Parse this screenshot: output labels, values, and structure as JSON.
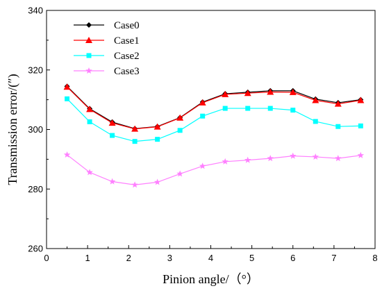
{
  "chart_data": {
    "type": "line",
    "xlabel": "Pinion angle/（°）",
    "ylabel": "Transmission error/(″)",
    "xlim": [
      0,
      8
    ],
    "ylim": [
      260,
      340
    ],
    "xticks": [
      0,
      1,
      2,
      3,
      4,
      5,
      6,
      7,
      8
    ],
    "yticks": [
      260,
      280,
      300,
      320,
      340
    ],
    "grid": false,
    "legend_position": "top-left",
    "x": [
      0.5,
      1.05,
      1.6,
      2.15,
      2.7,
      3.25,
      3.8,
      4.35,
      4.9,
      5.45,
      6.0,
      6.55,
      7.1,
      7.65
    ],
    "series": [
      {
        "name": "Case0",
        "color": "#000000",
        "marker": "diamond",
        "values": [
          314.5,
          307.0,
          302.5,
          300.3,
          301.0,
          304.0,
          309.2,
          312.0,
          312.5,
          313.0,
          313.0,
          310.2,
          309.0,
          310.0
        ]
      },
      {
        "name": "Case1",
        "color": "#ff0000",
        "marker": "triangle",
        "values": [
          314.3,
          306.8,
          302.2,
          300.2,
          300.9,
          303.9,
          309.0,
          311.8,
          312.2,
          312.6,
          312.5,
          309.8,
          308.6,
          309.8
        ]
      },
      {
        "name": "Case2",
        "color": "#00ffff",
        "marker": "square",
        "values": [
          310.3,
          302.6,
          298.0,
          296.0,
          296.7,
          299.7,
          304.5,
          307.1,
          307.1,
          307.1,
          306.5,
          302.7,
          301.0,
          301.2
        ]
      },
      {
        "name": "Case3",
        "color": "#ff80ff",
        "marker": "star",
        "values": [
          291.5,
          285.6,
          282.5,
          281.4,
          282.3,
          285.1,
          287.7,
          289.2,
          289.7,
          290.3,
          291.1,
          290.8,
          290.3,
          291.3
        ]
      }
    ]
  }
}
